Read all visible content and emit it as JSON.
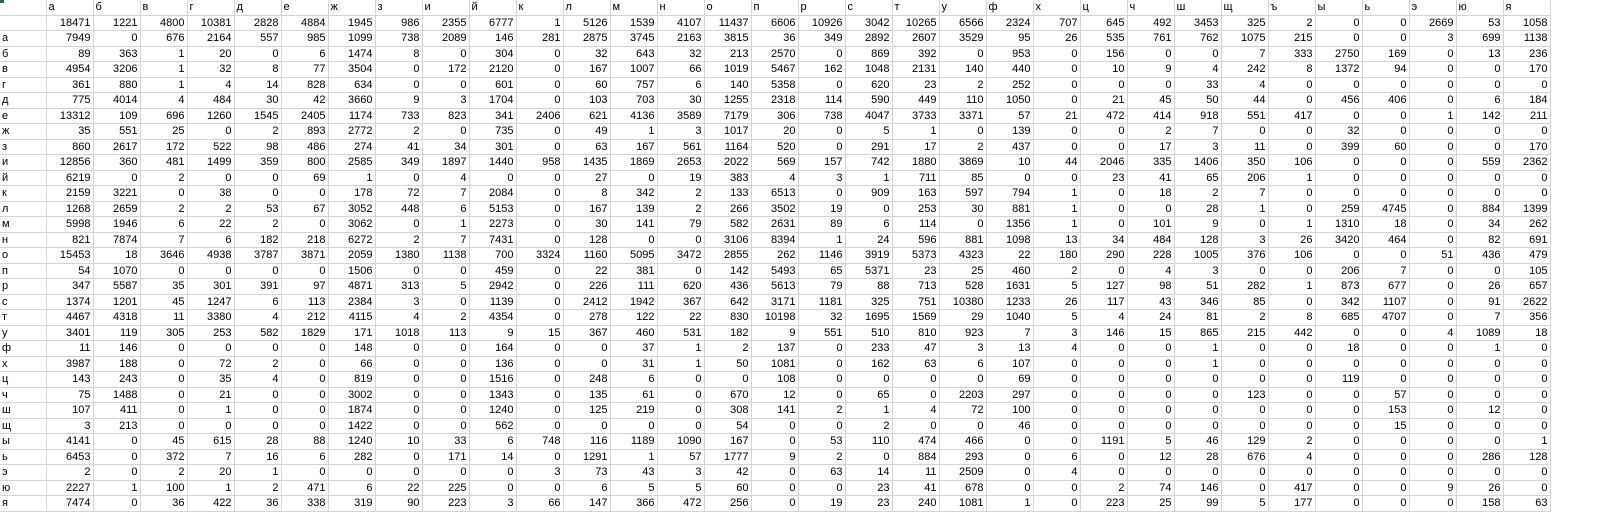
{
  "sheet": {
    "header": [
      "",
      "а",
      "б",
      "в",
      "г",
      "д",
      "е",
      "ж",
      "з",
      "и",
      "й",
      "к",
      "л",
      "м",
      "н",
      "о",
      "п",
      "р",
      "с",
      "т",
      "у",
      "ф",
      "х",
      "ц",
      "ч",
      "ш",
      "щ",
      "ъ",
      "ы",
      "ь",
      "э",
      "ю",
      "я"
    ],
    "rows": [
      [
        "",
        "18471",
        "1221",
        "4800",
        "10381",
        "2828",
        "4884",
        "1945",
        "986",
        "2355",
        "6777",
        "1",
        "5126",
        "1539",
        "4107",
        "11437",
        "6606",
        "10926",
        "3042",
        "10265",
        "6566",
        "2324",
        "707",
        "645",
        "492",
        "3453",
        "325",
        "2",
        "0",
        "0",
        "2669",
        "53",
        "1058"
      ],
      [
        "а",
        "7949",
        "0",
        "676",
        "2164",
        "557",
        "985",
        "1099",
        "738",
        "2089",
        "146",
        "281",
        "2875",
        "3745",
        "2163",
        "3815",
        "36",
        "349",
        "2892",
        "2607",
        "3529",
        "95",
        "26",
        "535",
        "761",
        "762",
        "1075",
        "215",
        "0",
        "0",
        "3",
        "699",
        "1138"
      ],
      [
        "б",
        "89",
        "363",
        "1",
        "20",
        "0",
        "6",
        "1474",
        "8",
        "0",
        "304",
        "0",
        "32",
        "643",
        "32",
        "213",
        "2570",
        "0",
        "869",
        "392",
        "0",
        "953",
        "0",
        "156",
        "0",
        "0",
        "7",
        "333",
        "2750",
        "169",
        "0",
        "13",
        "236"
      ],
      [
        "в",
        "4954",
        "3206",
        "1",
        "32",
        "8",
        "77",
        "3504",
        "0",
        "172",
        "2120",
        "0",
        "167",
        "1007",
        "66",
        "1019",
        "5467",
        "162",
        "1048",
        "2131",
        "140",
        "440",
        "0",
        "10",
        "9",
        "4",
        "242",
        "8",
        "1372",
        "94",
        "0",
        "0",
        "170"
      ],
      [
        "г",
        "361",
        "880",
        "1",
        "4",
        "14",
        "828",
        "634",
        "0",
        "0",
        "601",
        "0",
        "60",
        "757",
        "6",
        "140",
        "5358",
        "0",
        "620",
        "23",
        "2",
        "252",
        "0",
        "0",
        "0",
        "33",
        "4",
        "0",
        "0",
        "0",
        "0",
        "0",
        "0"
      ],
      [
        "д",
        "775",
        "4014",
        "4",
        "484",
        "30",
        "42",
        "3660",
        "9",
        "3",
        "1704",
        "0",
        "103",
        "703",
        "30",
        "1255",
        "2318",
        "114",
        "590",
        "449",
        "110",
        "1050",
        "0",
        "21",
        "45",
        "50",
        "44",
        "0",
        "456",
        "406",
        "0",
        "6",
        "184"
      ],
      [
        "е",
        "13312",
        "109",
        "696",
        "1260",
        "1545",
        "2405",
        "1174",
        "733",
        "823",
        "341",
        "2406",
        "621",
        "4136",
        "3589",
        "7179",
        "306",
        "738",
        "4047",
        "3733",
        "3371",
        "57",
        "21",
        "472",
        "414",
        "918",
        "551",
        "417",
        "0",
        "0",
        "1",
        "142",
        "211"
      ],
      [
        "ж",
        "35",
        "551",
        "25",
        "0",
        "2",
        "893",
        "2772",
        "2",
        "0",
        "735",
        "0",
        "49",
        "1",
        "3",
        "1017",
        "20",
        "0",
        "5",
        "1",
        "0",
        "139",
        "0",
        "0",
        "2",
        "7",
        "0",
        "0",
        "32",
        "0",
        "0",
        "0",
        "0"
      ],
      [
        "з",
        "860",
        "2617",
        "172",
        "522",
        "98",
        "486",
        "274",
        "41",
        "34",
        "301",
        "0",
        "63",
        "167",
        "561",
        "1164",
        "520",
        "0",
        "291",
        "17",
        "2",
        "437",
        "0",
        "0",
        "17",
        "3",
        "11",
        "0",
        "399",
        "60",
        "0",
        "0",
        "170"
      ],
      [
        "и",
        "12856",
        "360",
        "481",
        "1499",
        "359",
        "800",
        "2585",
        "349",
        "1897",
        "1440",
        "958",
        "1435",
        "1869",
        "2653",
        "2022",
        "569",
        "157",
        "742",
        "1880",
        "3869",
        "10",
        "44",
        "2046",
        "335",
        "1406",
        "350",
        "106",
        "0",
        "0",
        "0",
        "559",
        "2362"
      ],
      [
        "й",
        "6219",
        "0",
        "2",
        "0",
        "0",
        "69",
        "1",
        "0",
        "4",
        "0",
        "0",
        "27",
        "0",
        "19",
        "383",
        "4",
        "3",
        "1",
        "711",
        "85",
        "0",
        "0",
        "23",
        "41",
        "65",
        "206",
        "1",
        "0",
        "0",
        "0",
        "0",
        "0"
      ],
      [
        "к",
        "2159",
        "3221",
        "0",
        "38",
        "0",
        "0",
        "178",
        "72",
        "7",
        "2084",
        "0",
        "8",
        "342",
        "2",
        "133",
        "6513",
        "0",
        "909",
        "163",
        "597",
        "794",
        "1",
        "0",
        "18",
        "2",
        "7",
        "0",
        "0",
        "0",
        "0",
        "0",
        "0"
      ],
      [
        "л",
        "1268",
        "2659",
        "2",
        "2",
        "53",
        "67",
        "3052",
        "448",
        "6",
        "5153",
        "0",
        "167",
        "139",
        "2",
        "266",
        "3502",
        "19",
        "0",
        "253",
        "30",
        "881",
        "1",
        "0",
        "0",
        "28",
        "1",
        "0",
        "259",
        "4745",
        "0",
        "884",
        "1399"
      ],
      [
        "м",
        "5998",
        "1946",
        "6",
        "22",
        "2",
        "0",
        "3062",
        "0",
        "1",
        "2273",
        "0",
        "30",
        "141",
        "79",
        "582",
        "2631",
        "89",
        "6",
        "114",
        "0",
        "1356",
        "1",
        "0",
        "101",
        "9",
        "0",
        "1",
        "1310",
        "18",
        "0",
        "34",
        "262"
      ],
      [
        "н",
        "821",
        "7874",
        "7",
        "6",
        "182",
        "218",
        "6272",
        "2",
        "7",
        "7431",
        "0",
        "128",
        "0",
        "0",
        "3106",
        "8394",
        "1",
        "24",
        "596",
        "881",
        "1098",
        "13",
        "34",
        "484",
        "128",
        "3",
        "26",
        "3420",
        "464",
        "0",
        "82",
        "691"
      ],
      [
        "о",
        "15453",
        "18",
        "3646",
        "4938",
        "3787",
        "3871",
        "2059",
        "1380",
        "1138",
        "700",
        "3324",
        "1160",
        "5095",
        "3472",
        "2855",
        "262",
        "1146",
        "3919",
        "5373",
        "4323",
        "22",
        "180",
        "290",
        "228",
        "1005",
        "376",
        "106",
        "0",
        "0",
        "51",
        "436",
        "479"
      ],
      [
        "п",
        "54",
        "1070",
        "0",
        "0",
        "0",
        "0",
        "1506",
        "0",
        "0",
        "459",
        "0",
        "22",
        "381",
        "0",
        "142",
        "5493",
        "65",
        "5371",
        "23",
        "25",
        "460",
        "2",
        "0",
        "4",
        "3",
        "0",
        "0",
        "206",
        "7",
        "0",
        "0",
        "105"
      ],
      [
        "р",
        "347",
        "5587",
        "35",
        "301",
        "391",
        "97",
        "4871",
        "313",
        "5",
        "2942",
        "0",
        "226",
        "111",
        "620",
        "436",
        "5613",
        "79",
        "88",
        "713",
        "528",
        "1631",
        "5",
        "127",
        "98",
        "51",
        "282",
        "1",
        "873",
        "677",
        "0",
        "26",
        "657"
      ],
      [
        "с",
        "1374",
        "1201",
        "45",
        "1247",
        "6",
        "113",
        "2384",
        "3",
        "0",
        "1139",
        "0",
        "2412",
        "1942",
        "367",
        "642",
        "3171",
        "1181",
        "325",
        "751",
        "10380",
        "1233",
        "26",
        "117",
        "43",
        "346",
        "85",
        "0",
        "342",
        "1107",
        "0",
        "91",
        "2622"
      ],
      [
        "т",
        "4467",
        "4318",
        "11",
        "3380",
        "4",
        "212",
        "4115",
        "4",
        "2",
        "4354",
        "0",
        "278",
        "122",
        "22",
        "830",
        "10198",
        "32",
        "1695",
        "1569",
        "29",
        "1040",
        "5",
        "4",
        "24",
        "81",
        "2",
        "8",
        "685",
        "4707",
        "0",
        "7",
        "356"
      ],
      [
        "у",
        "3401",
        "119",
        "305",
        "253",
        "582",
        "1829",
        "171",
        "1018",
        "113",
        "9",
        "15",
        "367",
        "460",
        "531",
        "182",
        "9",
        "551",
        "510",
        "810",
        "923",
        "7",
        "3",
        "146",
        "15",
        "865",
        "215",
        "442",
        "0",
        "0",
        "4",
        "1089",
        "18"
      ],
      [
        "ф",
        "11",
        "146",
        "0",
        "0",
        "0",
        "0",
        "148",
        "0",
        "0",
        "164",
        "0",
        "0",
        "37",
        "1",
        "2",
        "137",
        "0",
        "233",
        "47",
        "3",
        "13",
        "4",
        "0",
        "0",
        "1",
        "0",
        "0",
        "18",
        "0",
        "0",
        "1",
        "0"
      ],
      [
        "х",
        "3987",
        "188",
        "0",
        "72",
        "2",
        "0",
        "66",
        "0",
        "0",
        "136",
        "0",
        "0",
        "31",
        "1",
        "50",
        "1081",
        "0",
        "162",
        "63",
        "6",
        "107",
        "0",
        "0",
        "0",
        "1",
        "0",
        "0",
        "0",
        "0",
        "0",
        "0",
        "0"
      ],
      [
        "ц",
        "143",
        "243",
        "0",
        "35",
        "4",
        "0",
        "819",
        "0",
        "0",
        "1516",
        "0",
        "248",
        "6",
        "0",
        "0",
        "108",
        "0",
        "0",
        "0",
        "0",
        "69",
        "0",
        "0",
        "0",
        "0",
        "0",
        "0",
        "119",
        "0",
        "0",
        "0",
        "0"
      ],
      [
        "ч",
        "75",
        "1488",
        "0",
        "21",
        "0",
        "0",
        "3002",
        "0",
        "0",
        "1343",
        "0",
        "135",
        "61",
        "0",
        "670",
        "12",
        "0",
        "65",
        "0",
        "2203",
        "297",
        "0",
        "0",
        "0",
        "0",
        "123",
        "0",
        "0",
        "57",
        "0",
        "0",
        "0"
      ],
      [
        "ш",
        "107",
        "411",
        "0",
        "1",
        "0",
        "0",
        "1874",
        "0",
        "0",
        "1240",
        "0",
        "125",
        "219",
        "0",
        "308",
        "141",
        "2",
        "1",
        "4",
        "72",
        "100",
        "0",
        "0",
        "0",
        "0",
        "0",
        "0",
        "0",
        "153",
        "0",
        "12",
        "0"
      ],
      [
        "щ",
        "3",
        "213",
        "0",
        "0",
        "0",
        "0",
        "1422",
        "0",
        "0",
        "562",
        "0",
        "0",
        "0",
        "0",
        "54",
        "0",
        "0",
        "2",
        "0",
        "0",
        "46",
        "0",
        "0",
        "0",
        "0",
        "0",
        "0",
        "0",
        "15",
        "0",
        "0",
        "0"
      ],
      [
        "ы",
        "4141",
        "0",
        "45",
        "615",
        "28",
        "88",
        "1240",
        "10",
        "33",
        "6",
        "748",
        "116",
        "1189",
        "1090",
        "167",
        "0",
        "53",
        "110",
        "474",
        "466",
        "0",
        "0",
        "1191",
        "5",
        "46",
        "129",
        "2",
        "0",
        "0",
        "0",
        "0",
        "1"
      ],
      [
        "ь",
        "6453",
        "0",
        "372",
        "7",
        "16",
        "6",
        "282",
        "0",
        "171",
        "14",
        "0",
        "1291",
        "1",
        "57",
        "1777",
        "9",
        "2",
        "0",
        "884",
        "293",
        "0",
        "6",
        "0",
        "12",
        "28",
        "676",
        "4",
        "0",
        "0",
        "0",
        "286",
        "128"
      ],
      [
        "э",
        "2",
        "0",
        "2",
        "20",
        "1",
        "0",
        "0",
        "0",
        "0",
        "0",
        "3",
        "73",
        "43",
        "3",
        "42",
        "0",
        "63",
        "14",
        "11",
        "2509",
        "0",
        "4",
        "0",
        "0",
        "0",
        "0",
        "0",
        "0",
        "0",
        "0",
        "0",
        "0"
      ],
      [
        "ю",
        "2227",
        "1",
        "100",
        "1",
        "2",
        "471",
        "6",
        "22",
        "225",
        "0",
        "0",
        "6",
        "5",
        "5",
        "60",
        "0",
        "0",
        "23",
        "41",
        "678",
        "0",
        "0",
        "2",
        "74",
        "146",
        "0",
        "417",
        "0",
        "0",
        "9",
        "26",
        "0"
      ],
      [
        "я",
        "7474",
        "0",
        "36",
        "422",
        "36",
        "338",
        "319",
        "90",
        "223",
        "3",
        "66",
        "147",
        "366",
        "472",
        "256",
        "0",
        "19",
        "23",
        "240",
        "1081",
        "1",
        "0",
        "223",
        "25",
        "99",
        "5",
        "177",
        "0",
        "0",
        "0",
        "158",
        "63"
      ]
    ]
  }
}
